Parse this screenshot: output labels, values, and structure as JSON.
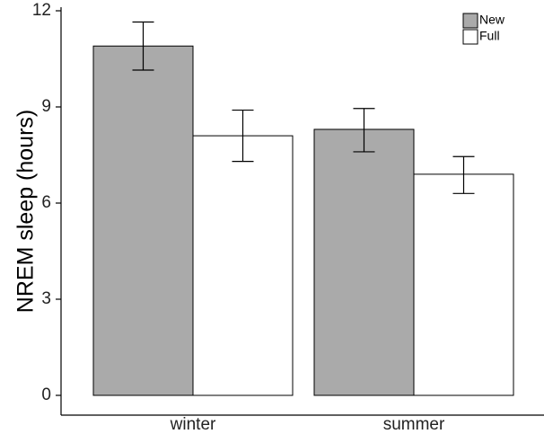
{
  "chart_data": {
    "type": "bar",
    "title": "",
    "xlabel": "",
    "ylabel": "NREM sleep (hours)",
    "ylim": [
      0,
      12
    ],
    "yticks": [
      0,
      3,
      6,
      9,
      12
    ],
    "categories": [
      "winter",
      "summer"
    ],
    "series": [
      {
        "name": "New",
        "color": "#aaaaaa",
        "values": [
          10.9,
          8.3
        ],
        "error_low": [
          10.15,
          7.6
        ],
        "error_high": [
          11.65,
          8.95
        ]
      },
      {
        "name": "Full",
        "color": "#ffffff",
        "values": [
          8.1,
          6.9
        ],
        "error_low": [
          7.3,
          6.3
        ],
        "error_high": [
          8.9,
          7.45
        ]
      }
    ],
    "legend": "top-right",
    "grid": false
  }
}
